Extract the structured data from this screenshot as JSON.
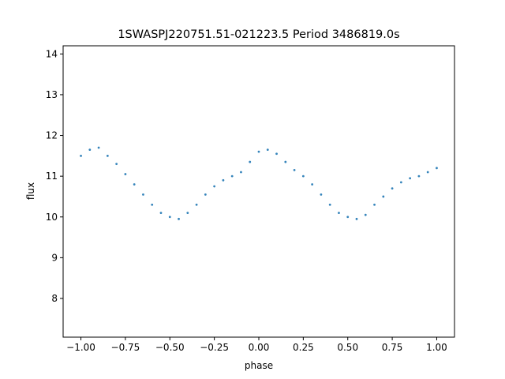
{
  "chart_data": {
    "type": "scatter",
    "title": "1SWASPJ220751.51-021223.5 Period 3486819.0s",
    "xlabel": "phase",
    "ylabel": "flux",
    "xlim": [
      -1.1,
      1.1
    ],
    "ylim": [
      7.05,
      14.2
    ],
    "xticks": [
      -1.0,
      -0.75,
      -0.5,
      -0.25,
      0.0,
      0.25,
      0.5,
      0.75,
      1.0
    ],
    "xtick_labels": [
      "−1.00",
      "−0.75",
      "−0.50",
      "−0.25",
      "0.00",
      "0.25",
      "0.50",
      "0.75",
      "1.00"
    ],
    "yticks": [
      8,
      9,
      10,
      11,
      12,
      13,
      14
    ],
    "ytick_labels": [
      "8",
      "9",
      "10",
      "11",
      "12",
      "13",
      "14"
    ],
    "grid": false,
    "legend": "none",
    "marker_color": "#1f77b4",
    "series": [
      {
        "x": [
          -1.0,
          -0.95,
          -0.9,
          -0.85,
          -0.8,
          -0.75,
          -0.7,
          -0.65,
          -0.6,
          -0.55,
          -0.5,
          -0.45,
          -0.4,
          -0.35,
          -0.3,
          -0.25,
          -0.2,
          -0.15,
          -0.1,
          -0.05,
          0.0,
          0.05,
          0.1,
          0.15,
          0.2,
          0.25,
          0.3,
          0.35,
          0.4,
          0.45,
          0.5,
          0.55,
          0.6,
          0.65,
          0.7,
          0.75,
          0.8,
          0.85,
          0.9,
          0.95,
          1.0
        ],
        "y": [
          11.5,
          11.65,
          11.7,
          11.5,
          11.3,
          11.05,
          10.8,
          10.55,
          10.3,
          10.1,
          10.0,
          9.95,
          10.1,
          10.3,
          10.55,
          10.75,
          10.9,
          11.0,
          11.1,
          11.35,
          11.6,
          11.65,
          11.55,
          11.35,
          11.15,
          11.0,
          10.8,
          10.55,
          10.3,
          10.1,
          10.0,
          9.95,
          10.05,
          10.3,
          10.5,
          10.7,
          10.85,
          10.95,
          11.0,
          11.1,
          11.2
        ]
      }
    ]
  }
}
